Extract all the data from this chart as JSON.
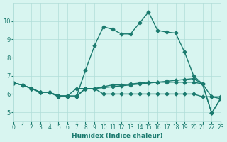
{
  "line1": {
    "x": [
      0,
      1,
      2,
      3,
      4,
      5,
      6,
      7,
      8,
      9,
      10,
      11,
      12,
      13,
      14,
      15,
      16,
      17,
      18,
      19,
      20,
      21,
      22,
      23
    ],
    "y": [
      6.6,
      6.5,
      6.3,
      6.1,
      6.1,
      5.85,
      5.85,
      5.85,
      7.3,
      8.65,
      9.7,
      9.55,
      9.3,
      9.3,
      9.9,
      10.5,
      9.5,
      9.4,
      9.35,
      8.3,
      7.0,
      6.55,
      5.85,
      5.75
    ]
  },
  "line2": {
    "x": [
      0,
      1,
      2,
      3,
      4,
      5,
      6,
      7,
      8,
      9,
      10,
      11,
      12,
      13,
      14,
      15,
      16,
      17,
      18,
      19,
      20,
      21,
      22,
      23
    ],
    "y": [
      6.6,
      6.5,
      6.3,
      6.1,
      6.1,
      5.9,
      5.9,
      6.3,
      6.3,
      6.3,
      6.35,
      6.4,
      6.45,
      6.5,
      6.55,
      6.6,
      6.65,
      6.7,
      6.75,
      6.8,
      6.85,
      6.55,
      4.95,
      5.75
    ]
  },
  "line3": {
    "x": [
      0,
      1,
      2,
      3,
      4,
      5,
      6,
      7,
      8,
      9,
      10,
      11,
      12,
      13,
      14,
      15,
      16,
      17,
      18,
      19,
      20,
      21,
      22,
      23
    ],
    "y": [
      6.6,
      6.5,
      6.3,
      6.1,
      6.1,
      5.85,
      5.85,
      5.85,
      6.3,
      6.3,
      6.4,
      6.5,
      6.5,
      6.55,
      6.6,
      6.65,
      6.65,
      6.65,
      6.65,
      6.65,
      6.65,
      6.55,
      4.95,
      5.75
    ]
  },
  "line4": {
    "x": [
      0,
      1,
      2,
      3,
      4,
      5,
      6,
      7,
      8,
      9,
      10,
      11,
      12,
      13,
      14,
      15,
      16,
      17,
      18,
      19,
      20,
      21,
      22,
      23
    ],
    "y": [
      6.6,
      6.5,
      6.3,
      6.1,
      6.1,
      5.9,
      5.9,
      5.9,
      6.3,
      6.3,
      6.0,
      6.0,
      6.0,
      6.0,
      6.0,
      6.0,
      6.0,
      6.0,
      6.0,
      6.0,
      6.0,
      5.85,
      5.85,
      5.85
    ]
  },
  "line_color": "#1a7a6e",
  "bg_color": "#d8f5f0",
  "grid_color": "#b0ddd8",
  "xlabel": "Humidex (Indice chaleur)",
  "ylim": [
    4.5,
    11.0
  ],
  "xlim": [
    0,
    23
  ],
  "yticks": [
    5,
    6,
    7,
    8,
    9,
    10
  ],
  "xticks": [
    0,
    1,
    2,
    3,
    4,
    5,
    6,
    7,
    8,
    9,
    10,
    11,
    12,
    13,
    14,
    15,
    16,
    17,
    18,
    19,
    20,
    21,
    22,
    23
  ]
}
